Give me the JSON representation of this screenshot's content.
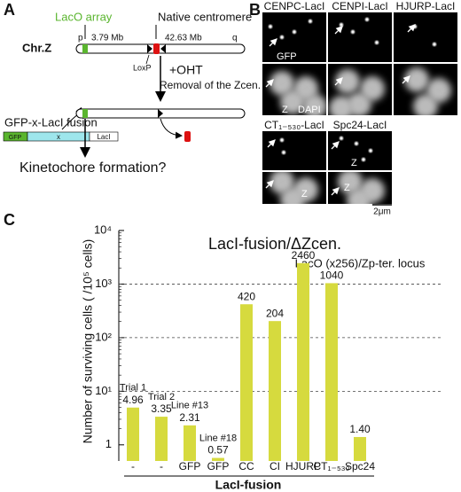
{
  "panel_a": {
    "label": "A",
    "lacO_array": "LacO array",
    "native_centromere": "Native centromere",
    "chromosome": "Chr.Z",
    "p_arm": "p",
    "lacO_position": "3.79 Mb",
    "centromere_position": "42.63 Mb",
    "q_arm": "q",
    "loxp": "LoxP",
    "treatment": "+OHT",
    "treatment_note": "Removal of the Zcen.",
    "fusion_title": "GFP-x-LacI fusion",
    "fusion_parts": [
      "GFP",
      "x",
      "LacI"
    ],
    "question": "Kinetochore formation?"
  },
  "panel_b": {
    "label": "B",
    "columns": [
      "CENPC-LacI",
      "CENPI-LacI",
      "HJURP-LacI",
      "CT₁₋₅₃₀-LacI",
      "Spc24-LacI"
    ],
    "gfp_label": "GFP",
    "dapi_label": "DAPI",
    "z_label": "Z",
    "scale_bar": "2μm"
  },
  "chart_data": {
    "type": "bar",
    "panel_label": "C",
    "title": "LacI-fusion/ΔZcen.",
    "subtitle": "LacO (x256)/Zp-ter. locus",
    "ylabel": "Number of surviving cells ( /10⁵ cells)",
    "xlabel": "LacI-fusion",
    "categories": [
      "-",
      "-",
      "GFP",
      "GFP",
      "CC",
      "CI",
      "HJURP",
      "CT₁₋₅₃₀",
      "Spc24"
    ],
    "values": [
      4.96,
      3.35,
      2.31,
      0.57,
      420,
      204,
      2460,
      1040,
      1.4
    ],
    "value_labels": [
      "4.96",
      "3.35",
      "2.31",
      "0.57",
      "420",
      "204",
      "2460",
      "1040",
      "1.40"
    ],
    "bar_notes": [
      "Trial 1",
      "Trial 2",
      "Line #13",
      "Line #18",
      null,
      null,
      null,
      null,
      null
    ],
    "color": "#d6da3e",
    "log_scale": true,
    "grid": true,
    "ylim": [
      0.5,
      10000
    ],
    "yticks": [
      1,
      {
        "value": 10,
        "label": "10¹"
      },
      {
        "value": 100,
        "label": "10²"
      },
      {
        "value": 1000,
        "label": "10³"
      },
      {
        "value": 10000,
        "label": "10⁴"
      }
    ]
  }
}
